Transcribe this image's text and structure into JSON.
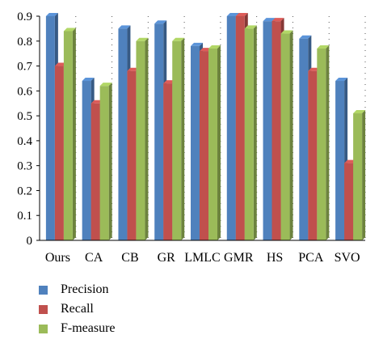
{
  "chart_data": {
    "type": "bar",
    "categories": [
      "Ours",
      "CA",
      "CB",
      "GR",
      "LMLC",
      "GMR",
      "HS",
      "PCA",
      "SVO"
    ],
    "series": [
      {
        "name": "Precision",
        "color": "#4f81bd",
        "values": [
          0.9,
          0.64,
          0.85,
          0.87,
          0.78,
          0.9,
          0.88,
          0.81,
          0.64
        ]
      },
      {
        "name": "Recall",
        "color": "#c0504d",
        "values": [
          0.7,
          0.55,
          0.68,
          0.63,
          0.76,
          0.9,
          0.88,
          0.68,
          0.31
        ]
      },
      {
        "name": "F-measure",
        "color": "#9bbb59",
        "values": [
          0.84,
          0.62,
          0.8,
          0.8,
          0.77,
          0.85,
          0.83,
          0.77,
          0.51
        ]
      }
    ],
    "yticks": [
      "0",
      "0.1",
      "0.2",
      "0.3",
      "0.4",
      "0.5",
      "0.6",
      "0.7",
      "0.8",
      "0.9"
    ],
    "ylim": [
      0,
      0.9
    ],
    "grid": "vertical dotted",
    "legend_position": "bottom-left"
  }
}
